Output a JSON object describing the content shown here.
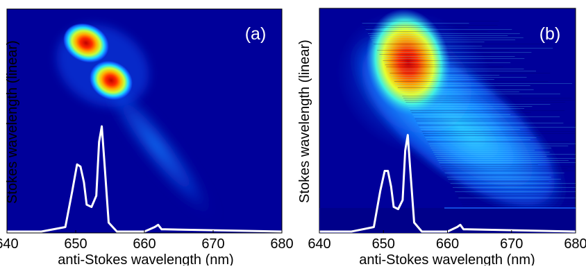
{
  "chart_data": [
    {
      "type": "heatmap",
      "panel_label": "(a)",
      "xlabel": "anti-Stokes wavelength (nm)",
      "ylabel": "Stokes wavelength (linear)",
      "xlim": [
        640,
        680
      ],
      "xticks": [
        "640",
        "650",
        "660",
        "670",
        "680"
      ],
      "colormap": "jet",
      "grid": false,
      "features": [
        {
          "kind": "peak",
          "x_nm": 649.4,
          "y_rel": 0.85,
          "intensity": 1.0
        },
        {
          "kind": "peak",
          "x_nm": 652.4,
          "y_rel": 0.69,
          "intensity": 0.95
        },
        {
          "kind": "tail",
          "from_x_nm": 653,
          "to_x_nm": 666,
          "intensity": 0.15
        }
      ],
      "overlay_spectrum": {
        "color": "#ffffff",
        "x": [
          640,
          645,
          648.5,
          649.5,
          650.2,
          650.7,
          651.2,
          651.6,
          652.3,
          653.0,
          653.4,
          653.8,
          654.2,
          654.8,
          656,
          660,
          661.5,
          662,
          662.5,
          663,
          680
        ],
        "y": [
          0.0,
          0.0,
          0.02,
          0.18,
          0.3,
          0.29,
          0.22,
          0.12,
          0.11,
          0.16,
          0.4,
          0.47,
          0.3,
          0.04,
          0.0,
          0.0,
          0.02,
          0.03,
          0.01,
          0.01,
          0.0
        ]
      }
    },
    {
      "type": "heatmap",
      "panel_label": "(b)",
      "xlabel": "anti-Stokes wavelength (nm)",
      "ylabel": "Stokes wavelength (linear)",
      "xlim": [
        640,
        680
      ],
      "xticks": [
        "640",
        "650",
        "660",
        "670",
        "680"
      ],
      "colormap": "jet",
      "grid": false,
      "features": [
        {
          "kind": "broad_peak",
          "x_nm": 653.0,
          "y_rel": 0.77,
          "intensity": 1.0
        },
        {
          "kind": "diagonal_band",
          "from_x_nm": 645,
          "to_x_nm": 680,
          "intensity": 0.45
        }
      ],
      "overlay_spectrum": {
        "color": "#ffffff",
        "x": [
          640,
          645,
          648.5,
          649.5,
          650.2,
          650.7,
          651.2,
          651.6,
          652.3,
          653.0,
          653.4,
          653.8,
          654.2,
          654.8,
          656,
          660,
          661.5,
          662,
          662.5,
          663,
          680
        ],
        "y": [
          0.0,
          0.0,
          0.02,
          0.18,
          0.27,
          0.27,
          0.2,
          0.11,
          0.1,
          0.14,
          0.36,
          0.43,
          0.27,
          0.04,
          0.0,
          0.0,
          0.02,
          0.03,
          0.01,
          0.01,
          0.0
        ]
      }
    }
  ]
}
